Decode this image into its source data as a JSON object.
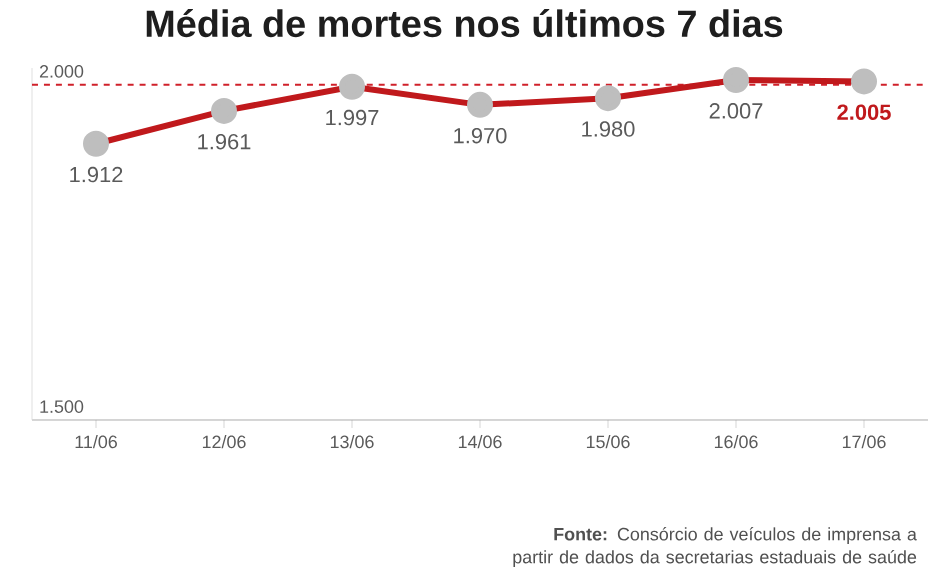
{
  "chart_data": {
    "type": "line",
    "title": "Média de mortes nos últimos 7 dias",
    "categories": [
      "11/06",
      "12/06",
      "13/06",
      "14/06",
      "15/06",
      "16/06",
      "17/06"
    ],
    "series": [
      {
        "color": "#c0191c",
        "values": [
          1912,
          1961,
          1997,
          1970,
          1980,
          2007,
          2005
        ],
        "value_labels": [
          "1.912",
          "1.961",
          "1.997",
          "1.970",
          "1.980",
          "2.007",
          "2.005"
        ]
      }
    ],
    "ylim": [
      1500,
      2025
    ],
    "yticks": [
      {
        "value": 1500,
        "label": "1.500"
      },
      {
        "value": 2000,
        "label": "2.000"
      }
    ],
    "ref_lines": [
      {
        "axis": "y",
        "value": 2000,
        "color": "#d0202a",
        "line_style": "dashed"
      }
    ],
    "marker": "circle",
    "line_style": "solid",
    "grid": false,
    "annotations": [
      "**Fonte:** Consórcio de veículos de imprensa a partir de dados da secretarias estaduais de saúde"
    ]
  }
}
